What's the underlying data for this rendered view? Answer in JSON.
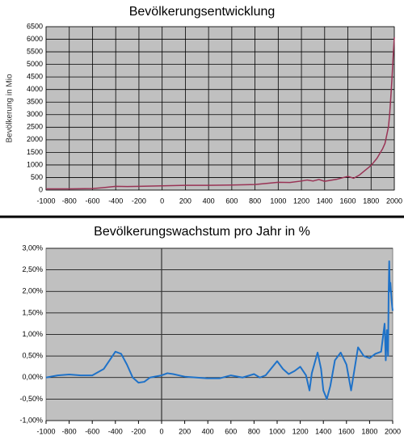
{
  "chart_data": [
    {
      "type": "line",
      "title": "Bevölkerungsentwicklung",
      "y_label": "Bevölkerung in Mio",
      "x": [
        -1000,
        -800,
        -600,
        -500,
        -400,
        -300,
        -200,
        0,
        200,
        400,
        600,
        800,
        1000,
        1100,
        1200,
        1250,
        1300,
        1350,
        1400,
        1500,
        1600,
        1650,
        1700,
        1750,
        1800,
        1850,
        1900,
        1920,
        1940,
        1950,
        1960,
        1970,
        1980,
        1990,
        2000
      ],
      "values": [
        50,
        50,
        60,
        100,
        150,
        140,
        150,
        170,
        190,
        190,
        200,
        220,
        310,
        300,
        360,
        400,
        360,
        420,
        350,
        425,
        545,
        470,
        600,
        790,
        980,
        1260,
        1650,
        1860,
        2300,
        2520,
        3020,
        3700,
        4440,
        5300,
        6080
      ],
      "color": "#993355",
      "xlim": [
        -1000,
        2000
      ],
      "xticks": [
        -1000,
        -800,
        -600,
        -400,
        -200,
        0,
        200,
        400,
        600,
        800,
        1000,
        1200,
        1400,
        1600,
        1800,
        2000
      ],
      "ylim": [
        0,
        6500
      ],
      "yticks": [
        0,
        500,
        1000,
        1500,
        2000,
        2500,
        3000,
        3500,
        4000,
        4500,
        5000,
        5500,
        6000,
        6500
      ],
      "grid": "both"
    },
    {
      "type": "line",
      "title": "Bevölkerungswachstum pro Jahr in %",
      "x": [
        -1000,
        -900,
        -800,
        -700,
        -600,
        -500,
        -400,
        -350,
        -300,
        -250,
        -200,
        -150,
        -100,
        0,
        50,
        100,
        200,
        300,
        400,
        500,
        600,
        700,
        800,
        850,
        900,
        1000,
        1050,
        1100,
        1150,
        1200,
        1250,
        1280,
        1300,
        1350,
        1380,
        1400,
        1430,
        1460,
        1500,
        1550,
        1600,
        1640,
        1700,
        1750,
        1800,
        1850,
        1900,
        1930,
        1940,
        1950,
        1960,
        1965,
        1970,
        1975,
        1980,
        1990,
        2000
      ],
      "values": [
        0,
        0.05,
        0.07,
        0.05,
        0.05,
        0.2,
        0.6,
        0.55,
        0.3,
        0,
        -0.12,
        -0.1,
        0,
        0.05,
        0.1,
        0.08,
        0.02,
        0,
        -0.02,
        -0.02,
        0.05,
        0,
        0.08,
        0,
        0.05,
        0.38,
        0.2,
        0.08,
        0.15,
        0.25,
        0.05,
        -0.3,
        0.1,
        0.58,
        0.2,
        -0.3,
        -0.5,
        -0.2,
        0.4,
        0.58,
        0.3,
        -0.3,
        0.7,
        0.5,
        0.45,
        0.55,
        0.6,
        1.25,
        0.4,
        1.1,
        0.5,
        2.0,
        2.7,
        2.0,
        2.2,
        1.8,
        1.55
      ],
      "color": "#1f72c8",
      "xlim": [
        -1000,
        2000
      ],
      "xticks": [
        -1000,
        -800,
        -600,
        -400,
        -200,
        0,
        200,
        400,
        600,
        800,
        1000,
        1200,
        1400,
        1600,
        1800,
        2000
      ],
      "ylim": [
        -1,
        3
      ],
      "yticks": [
        {
          "value": -1,
          "label": "-1,00%"
        },
        {
          "value": -0.5,
          "label": "-0,50%"
        },
        {
          "value": 0,
          "label": "0,00%"
        },
        {
          "value": 0.5,
          "label": "0,50%"
        },
        {
          "value": 1,
          "label": "1,00%"
        },
        {
          "value": 1.5,
          "label": "1,50%"
        },
        {
          "value": 2,
          "label": "2,00%"
        },
        {
          "value": 2.5,
          "label": "2,50%"
        },
        {
          "value": 3,
          "label": "3,00%"
        }
      ],
      "grid": "y"
    }
  ]
}
